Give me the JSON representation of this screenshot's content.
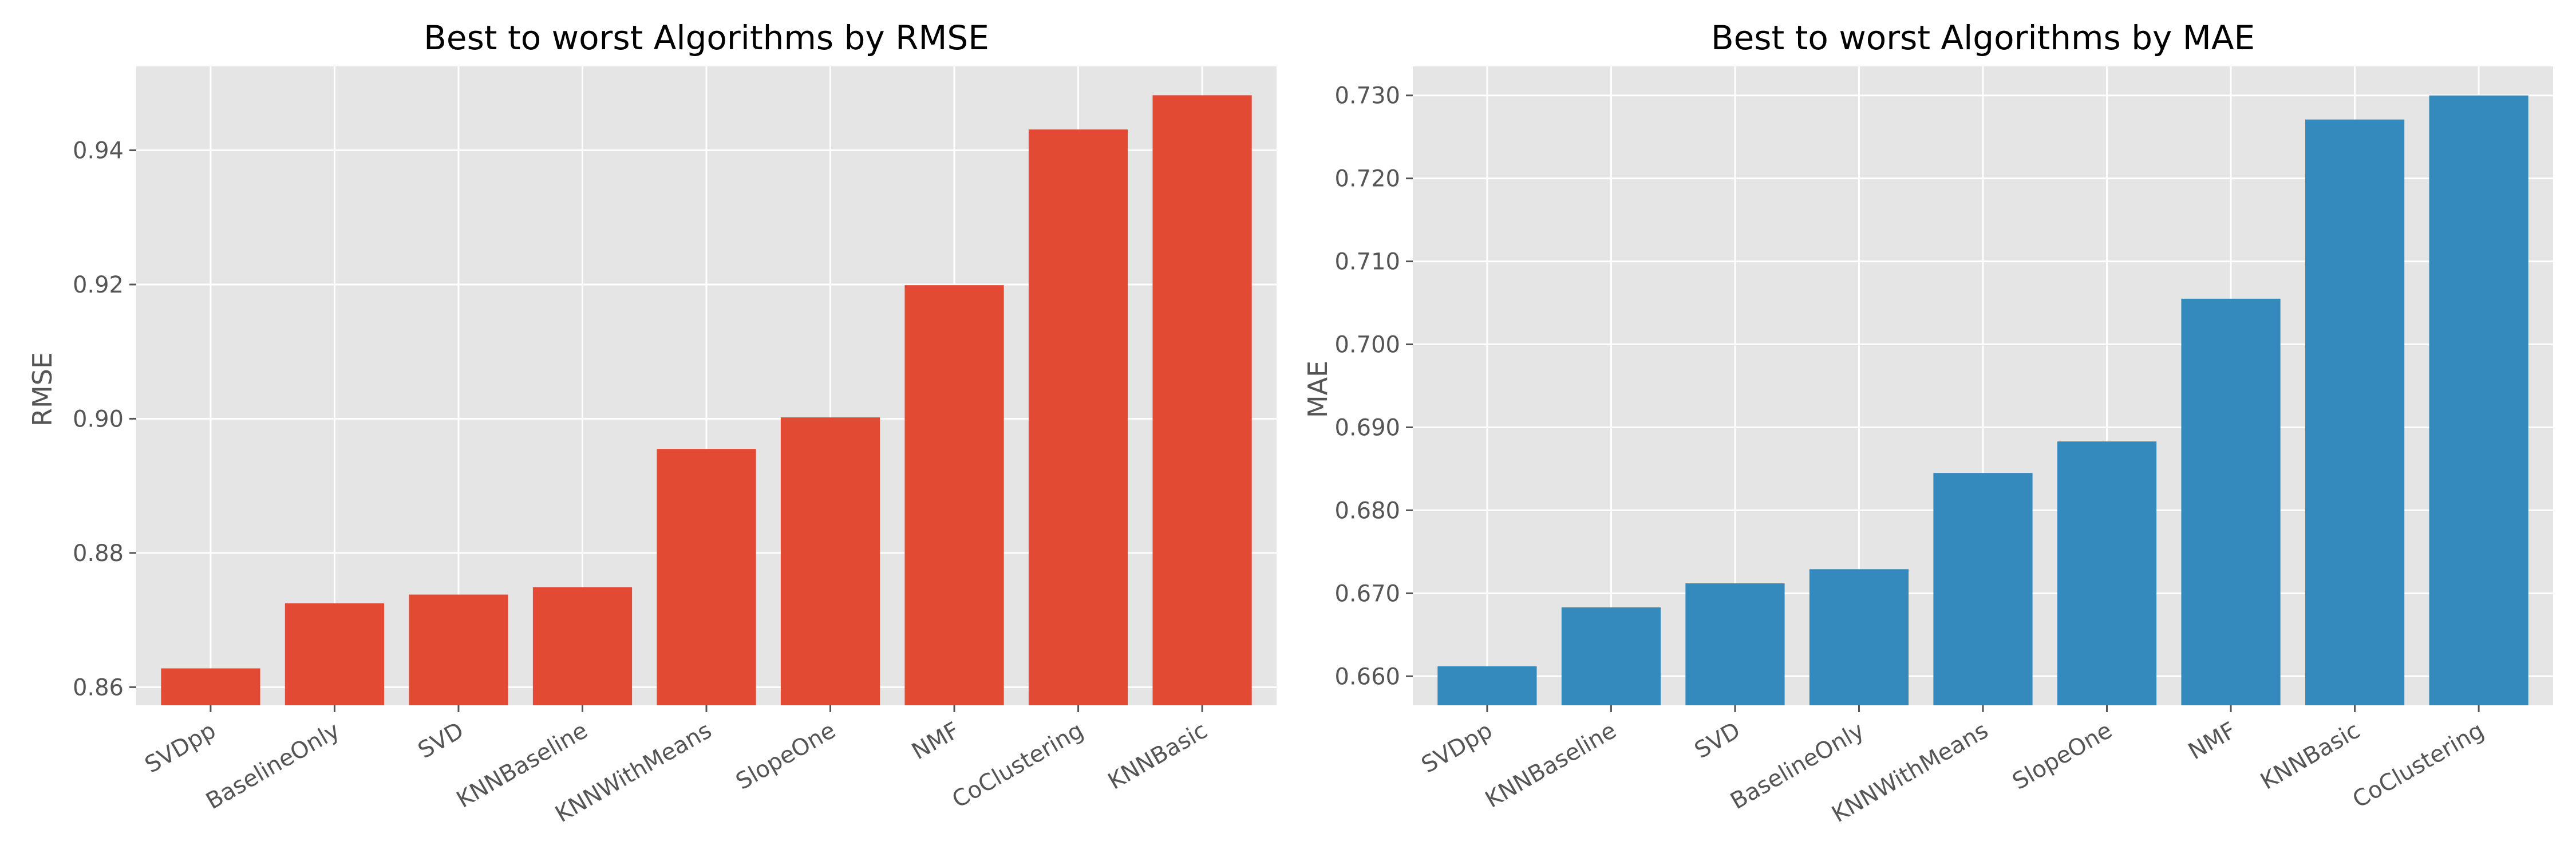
{
  "chart_data": [
    {
      "type": "bar",
      "title": "Best to worst Algorithms by RMSE",
      "xlabel": "",
      "ylabel": "RMSE",
      "categories": [
        "SVDpp",
        "BaselineOnly",
        "SVD",
        "KNNBaseline",
        "KNNWithMeans",
        "SlopeOne",
        "NMF",
        "CoClustering",
        "KNNBasic"
      ],
      "values": [
        0.8628,
        0.8725,
        0.8738,
        0.8749,
        0.8955,
        0.9002,
        0.9199,
        0.9431,
        0.9482
      ],
      "yticks": [
        0.86,
        0.88,
        0.9,
        0.92,
        0.94
      ],
      "ytick_labels": [
        "0.86",
        "0.88",
        "0.90",
        "0.92",
        "0.94"
      ],
      "ylim": [
        0.8573,
        0.9525
      ],
      "color": "#E24A33",
      "grid": true,
      "style": "ggplot"
    },
    {
      "type": "bar",
      "title": "Best to worst Algorithms by MAE",
      "xlabel": "",
      "ylabel": "MAE",
      "categories": [
        "SVDpp",
        "KNNBaseline",
        "SVD",
        "BaselineOnly",
        "KNNWithMeans",
        "SlopeOne",
        "NMF",
        "KNNBasic",
        "CoClustering"
      ],
      "values": [
        0.6612,
        0.6683,
        0.6712,
        0.6729,
        0.6845,
        0.6883,
        0.7055,
        0.7271,
        0.73
      ],
      "yticks": [
        0.66,
        0.67,
        0.68,
        0.69,
        0.7,
        0.71,
        0.72,
        0.73
      ],
      "ytick_labels": [
        "0.660",
        "0.670",
        "0.680",
        "0.690",
        "0.700",
        "0.710",
        "0.720",
        "0.730"
      ],
      "ylim": [
        0.6565,
        0.7335
      ],
      "color": "#348ABD",
      "grid": true,
      "style": "ggplot"
    }
  ]
}
